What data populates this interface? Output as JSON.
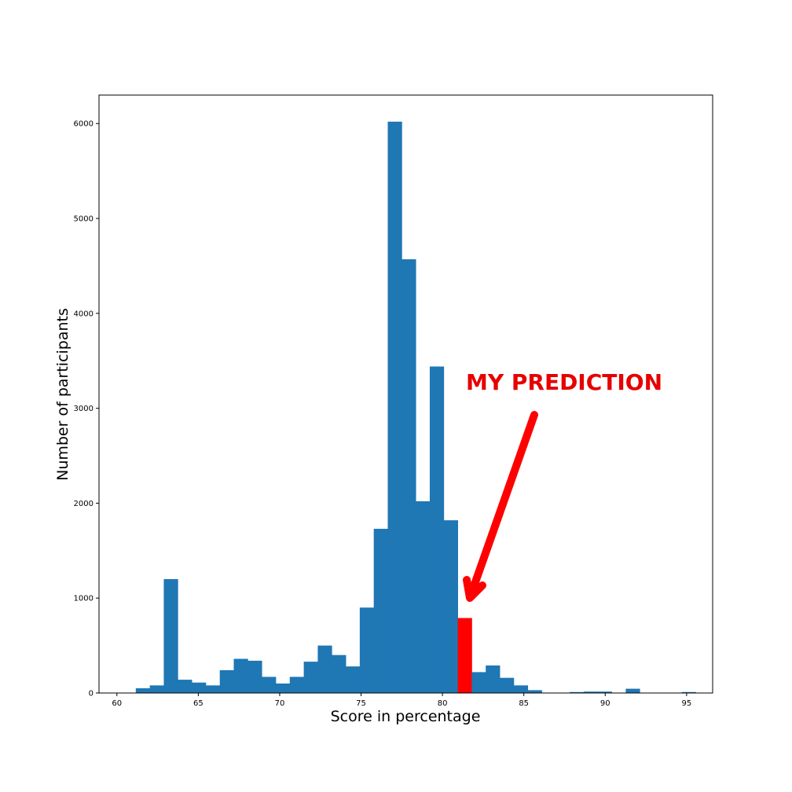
{
  "chart_data": {
    "type": "bar",
    "title": "",
    "xlabel": "Score in percentage",
    "ylabel": "Number of participants",
    "xlim": [
      58.9,
      96.6
    ],
    "ylim": [
      0,
      6300
    ],
    "xticks": [
      60,
      65,
      70,
      75,
      80,
      85,
      90,
      95
    ],
    "yticks": [
      0,
      1000,
      2000,
      3000,
      4000,
      5000,
      6000
    ],
    "bin_width": 0.86,
    "bin_start": 60.3,
    "values": [
      0,
      50,
      80,
      1200,
      140,
      110,
      80,
      240,
      360,
      340,
      170,
      100,
      170,
      330,
      500,
      400,
      280,
      900,
      1730,
      6020,
      4570,
      2020,
      3440,
      1820,
      790,
      220,
      290,
      160,
      80,
      30,
      0,
      0,
      10,
      15,
      15,
      0,
      45,
      0,
      0,
      0,
      10
    ],
    "highlight_index": 24,
    "bar_color": "#1f77b4",
    "highlight_color": "#ff0000",
    "grid": false,
    "annotation": {
      "text": "MY PREDICTION",
      "color": "#e60000",
      "arrow_color": "#ff0000"
    }
  }
}
